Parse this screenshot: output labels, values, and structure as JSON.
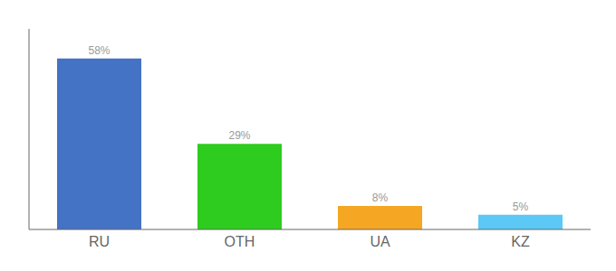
{
  "chart_data": {
    "type": "bar",
    "categories": [
      "RU",
      "OTH",
      "UA",
      "KZ"
    ],
    "values": [
      58,
      29,
      8,
      5
    ],
    "value_labels": [
      "58%",
      "29%",
      "8%",
      "5%"
    ],
    "colors": [
      "#4472c4",
      "#2ecc1e",
      "#f5a623",
      "#5bc8f5"
    ],
    "ylim": [
      0,
      68
    ],
    "grid": false,
    "data_labels": true,
    "tick_labels": "x"
  }
}
